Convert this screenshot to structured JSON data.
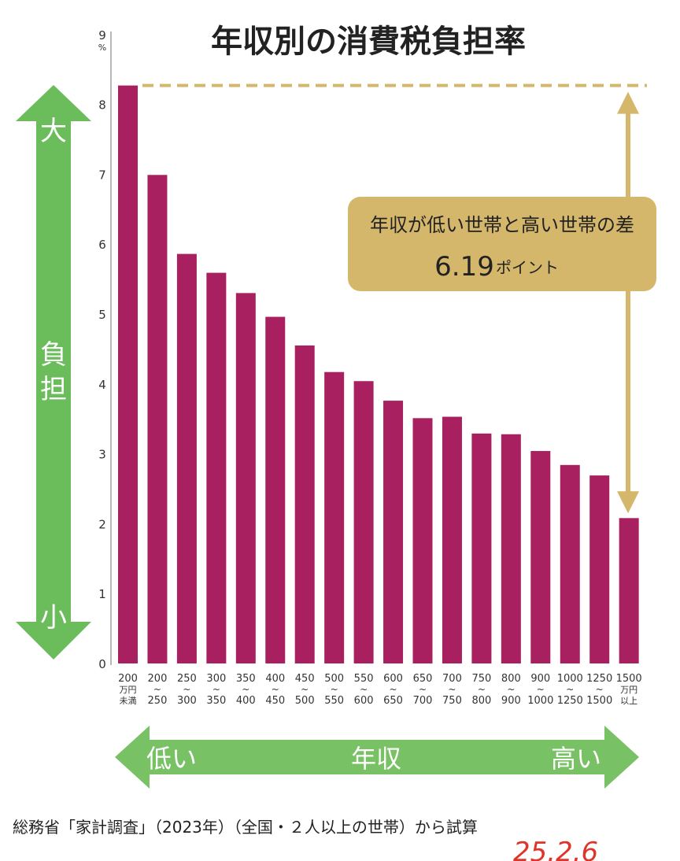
{
  "chart_data": {
    "type": "bar",
    "title": "年収別の消費税負担率",
    "y_unit": "%",
    "ylim": [
      0,
      9
    ],
    "yticks": [
      "0",
      "1",
      "2",
      "3",
      "4",
      "5",
      "6",
      "7",
      "8",
      "9"
    ],
    "categories": [
      [
        "200",
        "万円",
        "未満"
      ],
      [
        "200",
        "~",
        "250"
      ],
      [
        "250",
        "~",
        "300"
      ],
      [
        "300",
        "~",
        "350"
      ],
      [
        "350",
        "~",
        "400"
      ],
      [
        "400",
        "~",
        "450"
      ],
      [
        "450",
        "~",
        "500"
      ],
      [
        "500",
        "~",
        "550"
      ],
      [
        "550",
        "~",
        "600"
      ],
      [
        "600",
        "~",
        "650"
      ],
      [
        "650",
        "~",
        "700"
      ],
      [
        "700",
        "~",
        "750"
      ],
      [
        "750",
        "~",
        "800"
      ],
      [
        "800",
        "~",
        "900"
      ],
      [
        "900",
        "~",
        "1000"
      ],
      [
        "1000",
        "~",
        "1250"
      ],
      [
        "1250",
        "~",
        "1500"
      ],
      [
        "1500",
        "万円",
        "以上"
      ]
    ],
    "values": [
      8.27,
      6.99,
      5.86,
      5.59,
      5.3,
      4.96,
      4.55,
      4.17,
      4.04,
      3.76,
      3.51,
      3.53,
      3.29,
      3.28,
      3.04,
      2.84,
      2.69,
      2.08
    ],
    "bar_color": "#a8205f",
    "annotation": {
      "line1": "年収が低い世帯と高い世帯の差",
      "value": "6.19",
      "unit": "ポイント",
      "color": "#d4b76a"
    },
    "y_arrow": {
      "top": "大",
      "middle": "負担",
      "bottom": "小",
      "color": "#6bbd5b"
    },
    "x_arrow": {
      "left": "低い",
      "middle": "年収",
      "right": "高い",
      "color": "#78c165"
    },
    "grid": false
  },
  "source_note": "総務省「家計調査」（2023年）（全国・２人以上の世帯）から試算",
  "handwritten_note": "25.2.6"
}
